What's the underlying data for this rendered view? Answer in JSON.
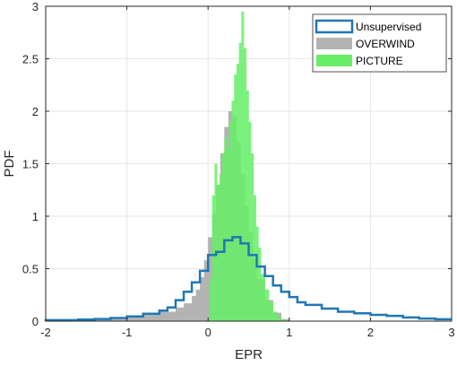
{
  "chart_data": {
    "type": "histogram",
    "title": "",
    "xlabel": "EPR",
    "ylabel": "PDF",
    "xlim": [
      -2,
      3
    ],
    "ylim": [
      0,
      3
    ],
    "xticks": [
      -2,
      -1,
      0,
      1,
      2,
      3
    ],
    "yticks": [
      0,
      0.5,
      1,
      1.5,
      2,
      2.5,
      3
    ],
    "xtick_labels": [
      "-2",
      "-1",
      "0",
      "1",
      "2",
      "3"
    ],
    "ytick_labels": [
      "0",
      "0.5",
      "1",
      "1.5",
      "2",
      "2.5",
      "3"
    ],
    "grid": true,
    "legend_position": "top-right",
    "series": [
      {
        "name": "Unsupervised",
        "style": "step",
        "color": "#1f77b4",
        "bin_edges": [
          -2.0,
          -1.8,
          -1.6,
          -1.4,
          -1.2,
          -1.0,
          -0.8,
          -0.6,
          -0.5,
          -0.4,
          -0.3,
          -0.2,
          -0.1,
          0.0,
          0.1,
          0.2,
          0.3,
          0.4,
          0.5,
          0.6,
          0.7,
          0.8,
          0.9,
          1.0,
          1.1,
          1.2,
          1.4,
          1.6,
          1.8,
          2.0,
          2.2,
          2.4,
          2.6,
          2.8,
          3.0
        ],
        "values": [
          0.01,
          0.01,
          0.015,
          0.02,
          0.03,
          0.045,
          0.07,
          0.1,
          0.13,
          0.2,
          0.28,
          0.37,
          0.48,
          0.63,
          0.66,
          0.77,
          0.8,
          0.74,
          0.63,
          0.52,
          0.43,
          0.34,
          0.28,
          0.23,
          0.18,
          0.155,
          0.12,
          0.09,
          0.075,
          0.06,
          0.05,
          0.035,
          0.025,
          0.018
        ]
      },
      {
        "name": "OVERWIND",
        "style": "filled",
        "color": "#b3b3b3",
        "bin_edges": [
          -1.4,
          -1.2,
          -1.0,
          -0.8,
          -0.6,
          -0.4,
          -0.3,
          -0.2,
          -0.15,
          -0.1,
          -0.05,
          0.0,
          0.05,
          0.1,
          0.15,
          0.2,
          0.25,
          0.3,
          0.35,
          0.4,
          0.45,
          0.5,
          0.55,
          0.6,
          0.7,
          0.8,
          0.9,
          1.0
        ],
        "values": [
          0.01,
          0.02,
          0.04,
          0.06,
          0.09,
          0.13,
          0.17,
          0.24,
          0.3,
          0.42,
          0.58,
          0.8,
          1.02,
          1.3,
          1.6,
          1.85,
          2.0,
          1.95,
          1.7,
          1.4,
          1.1,
          0.85,
          0.6,
          0.4,
          0.2,
          0.08,
          0.02
        ]
      },
      {
        "name": "PICTURE",
        "style": "filled",
        "color": "#66ee66",
        "bin_edges": [
          0.02,
          0.05,
          0.08,
          0.11,
          0.14,
          0.17,
          0.2,
          0.23,
          0.26,
          0.29,
          0.32,
          0.35,
          0.38,
          0.41,
          0.44,
          0.47,
          0.5,
          0.53,
          0.56,
          0.59,
          0.62,
          0.65,
          0.7,
          0.75,
          0.8,
          0.85,
          0.9,
          0.95
        ],
        "values": [
          0.4,
          1.2,
          1.5,
          1.3,
          1.4,
          1.6,
          1.75,
          1.65,
          1.9,
          2.1,
          2.35,
          2.45,
          2.65,
          2.95,
          2.6,
          2.2,
          1.9,
          1.6,
          1.2,
          0.9,
          0.7,
          0.45,
          0.3,
          0.18,
          0.09,
          0.04,
          0.01
        ]
      }
    ]
  }
}
